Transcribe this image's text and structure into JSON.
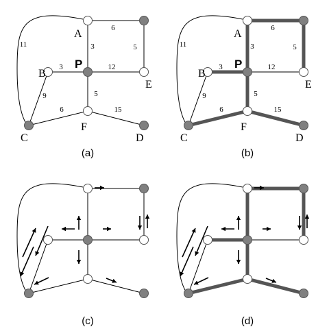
{
  "panels": [
    {
      "caption": "(a)",
      "node_labels": true,
      "weights": true,
      "tree": false,
      "arrows": false
    },
    {
      "caption": "(b)",
      "node_labels": true,
      "weights": true,
      "tree": true,
      "arrows": false
    },
    {
      "caption": "(c)",
      "node_labels": false,
      "weights": false,
      "tree": false,
      "arrows": true
    },
    {
      "caption": "(d)",
      "node_labels": false,
      "weights": false,
      "tree": true,
      "arrows": true
    }
  ],
  "nodes": [
    {
      "id": "A",
      "label": "A",
      "fill": "white"
    },
    {
      "id": "TR",
      "label": "",
      "fill": "gray"
    },
    {
      "id": "B",
      "label": "B",
      "fill": "white"
    },
    {
      "id": "P",
      "label": "P",
      "fill": "gray"
    },
    {
      "id": "E",
      "label": "E",
      "fill": "white"
    },
    {
      "id": "F",
      "label": "F",
      "fill": "white"
    },
    {
      "id": "C",
      "label": "C",
      "fill": "gray"
    },
    {
      "id": "D",
      "label": "D",
      "fill": "gray"
    }
  ],
  "edges": [
    {
      "from": "A",
      "to": "TR",
      "weight": "6",
      "in_tree": true
    },
    {
      "from": "TR",
      "to": "E",
      "weight": "5",
      "in_tree": true
    },
    {
      "from": "A",
      "to": "P",
      "weight": "3",
      "in_tree": true
    },
    {
      "from": "B",
      "to": "P",
      "weight": "3",
      "in_tree": true
    },
    {
      "from": "P",
      "to": "E",
      "weight": "12",
      "in_tree": false
    },
    {
      "from": "P",
      "to": "F",
      "weight": "5",
      "in_tree": true
    },
    {
      "from": "B",
      "to": "C",
      "weight": "9",
      "in_tree": false
    },
    {
      "from": "C",
      "to": "F",
      "weight": "6",
      "in_tree": true
    },
    {
      "from": "F",
      "to": "D",
      "weight": "15",
      "in_tree": true
    },
    {
      "from": "A",
      "to": "C",
      "weight": "11",
      "in_tree": false
    }
  ],
  "colors": {
    "node_gray": "#808080",
    "node_white": "#ffffff",
    "tree_edge": "#555555"
  }
}
